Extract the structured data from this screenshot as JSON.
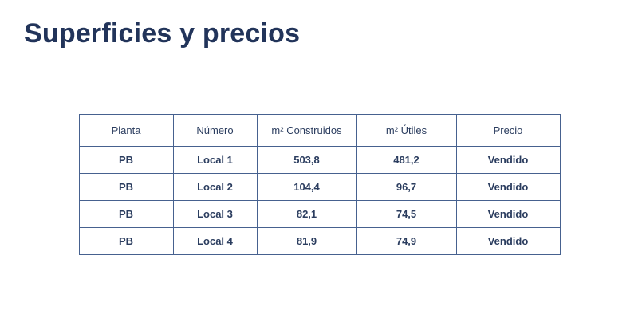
{
  "page": {
    "title": "Superficies y precios"
  },
  "colors": {
    "title_text": "#22345a",
    "table_border": "#46618f",
    "table_text": "#2b3d5f",
    "background": "#ffffff"
  },
  "table": {
    "headers": [
      "Planta",
      "Número",
      "m² Construidos",
      "m² Útiles",
      "Precio"
    ],
    "rows": [
      [
        "PB",
        "Local 1",
        "503,8",
        "481,2",
        "Vendido"
      ],
      [
        "PB",
        "Local 2",
        "104,4",
        "96,7",
        "Vendido"
      ],
      [
        "PB",
        "Local 3",
        "82,1",
        "74,5",
        "Vendido"
      ],
      [
        "PB",
        "Local 4",
        "81,9",
        "74,9",
        "Vendido"
      ]
    ]
  }
}
